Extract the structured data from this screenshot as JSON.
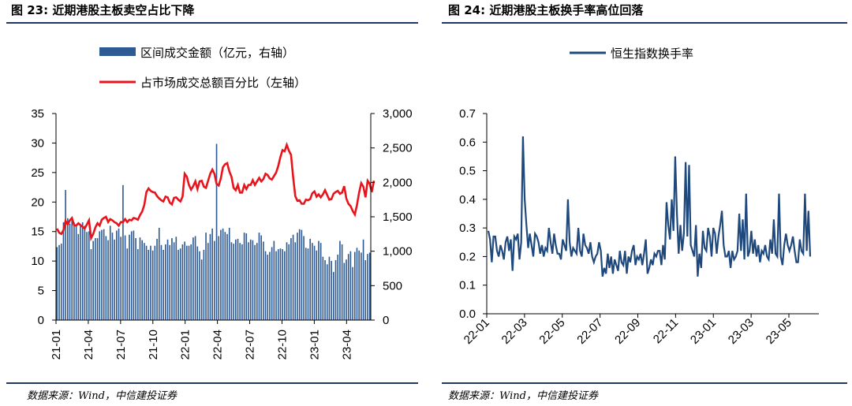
{
  "left": {
    "figure_title": "图 23: 近期港股主板卖空占比下降",
    "source": "数据来源：Wind，中信建投证券"
  },
  "right": {
    "figure_title": "图 24: 近期港股主板换手率高位回落",
    "source": "数据来源：Wind，中信建投证券"
  },
  "colors": {
    "bar": "#2e5a94",
    "ratio_line": "#e8141b",
    "turnover_line": "#1f497d",
    "rule": "#1f3864"
  },
  "chart_data": [
    {
      "type": "bar",
      "legend_position": "top",
      "grid": false,
      "x_tick_labels": [
        "21-01",
        "21-04",
        "21-07",
        "21-10",
        "22-01",
        "22-04",
        "22-07",
        "22-10",
        "23-01",
        "23-04"
      ],
      "y_left": {
        "range": [
          0,
          35
        ],
        "ticks": [
          "0",
          "5",
          "10",
          "15",
          "20",
          "25",
          "30",
          "35"
        ]
      },
      "y_right": {
        "range": [
          0,
          3000
        ],
        "ticks": [
          "0",
          "500",
          "1,000",
          "1,500",
          "2,000",
          "2,500",
          "3,000"
        ]
      },
      "series": [
        {
          "name": "区间成交金额（亿元，右轴）",
          "type": "bar",
          "axis": "right",
          "values": [
            1060,
            1090,
            1110,
            1420,
            1890,
            1480,
            1400,
            1480,
            1420,
            1380,
            1250,
            1390,
            1420,
            1370,
            1280,
            1290,
            1030,
            1150,
            1190,
            1190,
            1290,
            1310,
            1320,
            1220,
            1160,
            1370,
            1270,
            1170,
            1300,
            1330,
            1210,
            1960,
            1230,
            1040,
            1240,
            1290,
            1300,
            1190,
            1030,
            1200,
            1160,
            1120,
            1080,
            1020,
            1080,
            1010,
            1080,
            1180,
            1340,
            1090,
            1020,
            1100,
            1170,
            1090,
            1190,
            1130,
            1210,
            1020,
            1040,
            1100,
            1140,
            1080,
            1080,
            1100,
            1200,
            1220,
            1070,
            1000,
            880,
            1020,
            1270,
            1120,
            1250,
            1330,
            1150,
            2560,
            1220,
            1310,
            1330,
            1280,
            1250,
            1340,
            1130,
            1110,
            1170,
            1180,
            1120,
            1100,
            1270,
            1260,
            1130,
            1170,
            1160,
            1090,
            1120,
            1270,
            1230,
            1140,
            1000,
            950,
            990,
            1060,
            1150,
            1000,
            1030,
            1040,
            1030,
            1000,
            1130,
            1100,
            1190,
            1240,
            1130,
            1270,
            1320,
            1310,
            1220,
            1050,
            1040,
            1180,
            1120,
            1080,
            1010,
            1150,
            1120,
            920,
            870,
            810,
            920,
            860,
            700,
            870,
            950,
            1150,
            1100,
            830,
            880,
            960,
            1000,
            770,
            990,
            1050,
            1010,
            980,
            1170,
            870,
            960,
            980
          ]
        },
        {
          "name": "占市场成交总额百分比（左轴）",
          "type": "line",
          "axis": "left",
          "values": [
            15.5,
            14.8,
            14.6,
            15.2,
            16.8,
            16.2,
            16.9,
            17.3,
            16.1,
            16.0,
            16.4,
            16.1,
            15.8,
            15.5,
            16.2,
            16.9,
            13.9,
            14.6,
            15.7,
            16.4,
            16.0,
            17.0,
            17.3,
            17.5,
            16.6,
            17.1,
            16.9,
            16.6,
            16.4,
            16.0,
            16.6,
            16.6,
            17.1,
            16.6,
            17.0,
            16.9,
            17.3,
            17.2,
            17.0,
            17.8,
            18.4,
            19.5,
            21.7,
            22.3,
            21.9,
            21.7,
            21.6,
            21.0,
            20.6,
            20.3,
            20.1,
            20.9,
            20.8,
            19.9,
            19.6,
            20.7,
            20.8,
            20.4,
            20.1,
            20.9,
            24.8,
            24.3,
            22.9,
            22.1,
            22.7,
            23.5,
            22.2,
            23.5,
            23.6,
            22.6,
            22.4,
            23.6,
            24.8,
            25.5,
            24.8,
            23.1,
            22.8,
            24.0,
            25.9,
            26.4,
            26.6,
            25.2,
            24.3,
            22.4,
            22.0,
            22.9,
            21.6,
            21.6,
            22.9,
            22.2,
            22.9,
            22.9,
            23.7,
            22.9,
            23.5,
            24.1,
            23.5,
            23.9,
            24.8,
            24.6,
            24.0,
            23.8,
            24.4,
            25.0,
            26.1,
            27.6,
            28.8,
            28.6,
            29.7,
            28.7,
            28.0,
            24.2,
            21.0,
            20.2,
            20.3,
            19.7,
            19.7,
            20.4,
            20.3,
            20.5,
            21.5,
            21.8,
            20.9,
            21.3,
            20.8,
            21.3,
            22.0,
            21.2,
            20.4,
            20.5,
            21.4,
            21.7,
            21.9,
            21.4,
            21.6,
            22.7,
            20.6,
            19.7,
            19.3,
            18.5,
            17.9,
            19.5,
            21.6,
            23.2,
            22.6,
            20.8,
            23.6,
            23.1,
            21.7,
            23.6
          ]
        }
      ]
    },
    {
      "type": "line",
      "legend_position": "top",
      "grid": false,
      "x_tick_labels": [
        "22-01",
        "22-03",
        "22-05",
        "22-07",
        "22-09",
        "22-11",
        "23-01",
        "23-03",
        "23-05"
      ],
      "y": {
        "range": [
          0,
          0.7
        ],
        "ticks": [
          "0.0",
          "0.1",
          "0.2",
          "0.3",
          "0.4",
          "0.5",
          "0.6",
          "0.7"
        ]
      },
      "series": [
        {
          "name": "恒生指数换手率",
          "values": [
            0.29,
            0.26,
            0.18,
            0.27,
            0.27,
            0.22,
            0.2,
            0.24,
            0.22,
            0.19,
            0.25,
            0.27,
            0.22,
            0.26,
            0.15,
            0.27,
            0.26,
            0.28,
            0.19,
            0.25,
            0.62,
            0.4,
            0.31,
            0.23,
            0.28,
            0.24,
            0.2,
            0.28,
            0.27,
            0.25,
            0.21,
            0.24,
            0.2,
            0.23,
            0.22,
            0.3,
            0.25,
            0.21,
            0.28,
            0.24,
            0.21,
            0.21,
            0.19,
            0.26,
            0.24,
            0.22,
            0.4,
            0.25,
            0.2,
            0.23,
            0.22,
            0.21,
            0.3,
            0.22,
            0.2,
            0.28,
            0.24,
            0.23,
            0.21,
            0.25,
            0.2,
            0.18,
            0.2,
            0.21,
            0.25,
            0.22,
            0.13,
            0.16,
            0.14,
            0.21,
            0.16,
            0.2,
            0.14,
            0.19,
            0.17,
            0.15,
            0.22,
            0.18,
            0.17,
            0.22,
            0.14,
            0.2,
            0.18,
            0.22,
            0.24,
            0.17,
            0.2,
            0.19,
            0.21,
            0.17,
            0.21,
            0.26,
            0.14,
            0.16,
            0.19,
            0.17,
            0.21,
            0.2,
            0.22,
            0.22,
            0.17,
            0.24,
            0.19,
            0.39,
            0.31,
            0.26,
            0.4,
            0.29,
            0.55,
            0.35,
            0.21,
            0.31,
            0.22,
            0.28,
            0.53,
            0.27,
            0.52,
            0.24,
            0.22,
            0.2,
            0.31,
            0.13,
            0.21,
            0.16,
            0.29,
            0.23,
            0.22,
            0.3,
            0.27,
            0.2,
            0.3,
            0.28,
            0.21,
            0.27,
            0.31,
            0.36,
            0.24,
            0.2,
            0.2,
            0.22,
            0.16,
            0.22,
            0.19,
            0.2,
            0.22,
            0.35,
            0.22,
            0.33,
            0.19,
            0.42,
            0.2,
            0.22,
            0.29,
            0.21,
            0.26,
            0.2,
            0.24,
            0.18,
            0.22,
            0.21,
            0.24,
            0.2,
            0.19,
            0.26,
            0.21,
            0.33,
            0.21,
            0.2,
            0.42,
            0.2,
            0.17,
            0.24,
            0.28,
            0.24,
            0.22,
            0.24,
            0.27,
            0.22,
            0.18,
            0.18,
            0.26,
            0.22,
            0.21,
            0.42,
            0.22,
            0.36,
            0.2
          ]
        }
      ]
    }
  ]
}
